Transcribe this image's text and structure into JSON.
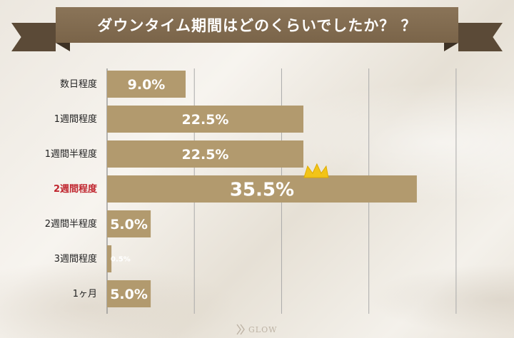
{
  "title": "ダウンタイム期間はどのくらいでしたか？ ？",
  "logo_text": "GLOW",
  "colors": {
    "bar": "#b29a6e",
    "highlight_label": "#c0262f",
    "banner": "#7d6a52",
    "grid": "#aaaaaa"
  },
  "chart_data": {
    "type": "bar",
    "orientation": "horizontal",
    "title": "ダウンタイム期間はどのくらいでしたか？ ？",
    "categories": [
      "数日程度",
      "1週間程度",
      "1週間半程度",
      "2週間程度",
      "2週間半程度",
      "3週間程度",
      "1ヶ月"
    ],
    "values": [
      9.0,
      22.5,
      22.5,
      35.5,
      5.0,
      0.5,
      5.0
    ],
    "value_labels": [
      "9.0%",
      "22.5%",
      "22.5%",
      "35.5%",
      "5.0%",
      "0.5%",
      "5.0%"
    ],
    "highlight_index": 3,
    "highlight_icon": "crown-icon",
    "xlim": [
      0,
      45
    ],
    "grid": true,
    "xlabel": "",
    "ylabel": ""
  }
}
